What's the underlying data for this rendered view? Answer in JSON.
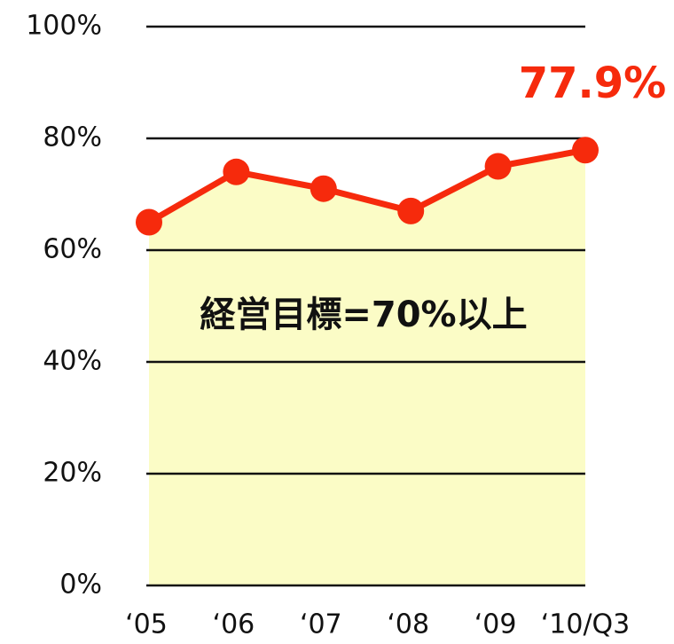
{
  "chart_data": {
    "type": "line",
    "categories": [
      "‘05",
      "‘06",
      "‘07",
      "‘08",
      "‘09",
      "‘10/Q3"
    ],
    "series": [
      {
        "color": "#f62a0c",
        "values": [
          65,
          74,
          71,
          67,
          75,
          77.9
        ],
        "value_labels": [
          null,
          null,
          null,
          null,
          null,
          "77.9%"
        ]
      }
    ],
    "area_color": "#fbfcc6",
    "annotation": "経営目標=70%以上",
    "ylim": [
      0,
      100
    ],
    "yticks": [
      {
        "value": 0,
        "label": "0%"
      },
      {
        "value": 20,
        "label": "20%"
      },
      {
        "value": 40,
        "label": "40%"
      },
      {
        "value": 60,
        "label": "60%"
      },
      {
        "value": 80,
        "label": "80%"
      },
      {
        "value": 100,
        "label": "100%"
      }
    ],
    "grid": true
  }
}
